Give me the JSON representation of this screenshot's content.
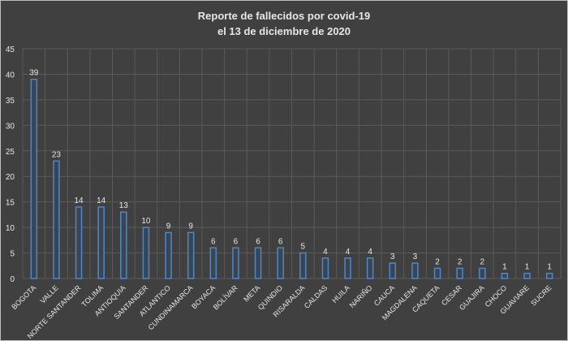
{
  "chart_data": {
    "type": "bar",
    "title": "Reporte de fallecidos por covid-19",
    "subtitle": "el 13 de diciembre de 2020",
    "xlabel": "",
    "ylabel": "",
    "ylim": [
      0,
      45
    ],
    "yticks": [
      0,
      5,
      10,
      15,
      20,
      25,
      30,
      35,
      40,
      45
    ],
    "grid": true,
    "legend": "none",
    "categories": [
      "BOGOTA",
      "VALLE",
      "NORTE SANTANDER",
      "TOLIMA",
      "ANTIOQUIA",
      "SANTANDER",
      "ATLANTICO",
      "CUNDINAMARCA",
      "BOYACA",
      "BOLÍVAR",
      "META",
      "QUINDIO",
      "RISARALDA",
      "CALDAS",
      "HUILA",
      "NARIÑO",
      "CAUCA",
      "MAGDALENA",
      "CAQUETA",
      "CESAR",
      "GUAJIRA",
      "CHOCO",
      "GUAVIARE",
      "SUCRE"
    ],
    "values": [
      39,
      23,
      14,
      14,
      13,
      10,
      9,
      9,
      6,
      6,
      6,
      6,
      5,
      4,
      4,
      4,
      3,
      3,
      2,
      2,
      2,
      1,
      1,
      1
    ],
    "colors": {
      "background": "#404040",
      "bar_outline": "#4f86c6",
      "bar_fill": "#3a4554",
      "grid": "#5a5a5a",
      "text": "#e6e6e6"
    }
  }
}
